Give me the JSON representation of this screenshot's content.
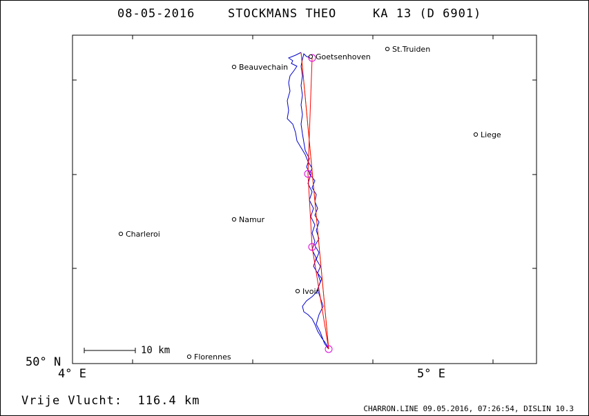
{
  "header": {
    "date": "08-05-2016",
    "pilot": "STOCKMANS THEO",
    "glider": "KA 13 (D 6901)"
  },
  "map": {
    "lat_label": "50° N",
    "lon_left_label": "4° E",
    "lon_right_label": "5° E",
    "scale_label": "10 km",
    "places": [
      {
        "name": "Goetsenhoven"
      },
      {
        "name": "St.Truiden"
      },
      {
        "name": "Beauvechain"
      },
      {
        "name": "Liege"
      },
      {
        "name": "Namur"
      },
      {
        "name": "Charleroi"
      },
      {
        "name": "Ivoir"
      },
      {
        "name": "Florennes"
      }
    ],
    "colors": {
      "track": "#0000cc",
      "task_red": "#ff0000",
      "task_green": "#88dd00",
      "turnpoint": "#dd00dd",
      "frame": "#000000"
    }
  },
  "footer": {
    "distance_label": "Vrije Vlucht:",
    "distance_value": "116.4 km",
    "program_info": "CHARRON.LINE 09.05.2016, 07:26:54, DISLIN 10.3"
  }
}
